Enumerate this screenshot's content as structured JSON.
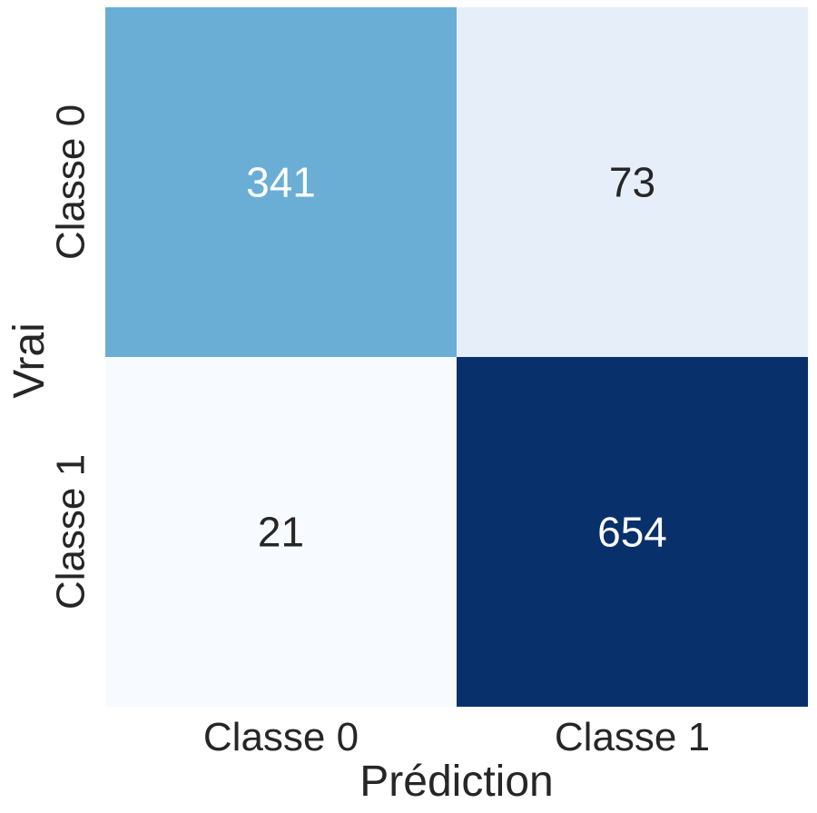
{
  "chart_data": {
    "type": "heatmap",
    "title": "",
    "xlabel": "Prédiction",
    "ylabel": "Vrai",
    "x_categories": [
      "Classe 0",
      "Classe 1"
    ],
    "y_categories": [
      "Classe 0",
      "Classe 1"
    ],
    "values": [
      [
        341,
        73
      ],
      [
        21,
        654
      ]
    ],
    "colormap": "Blues",
    "colorbar": false,
    "cell_colors": [
      [
        "#6aaed6",
        "#e6eff9"
      ],
      [
        "#f7fbff",
        "#08306b"
      ]
    ],
    "annotation_colors": [
      [
        "#ffffff",
        "#262626"
      ],
      [
        "#262626",
        "#ffffff"
      ]
    ]
  }
}
